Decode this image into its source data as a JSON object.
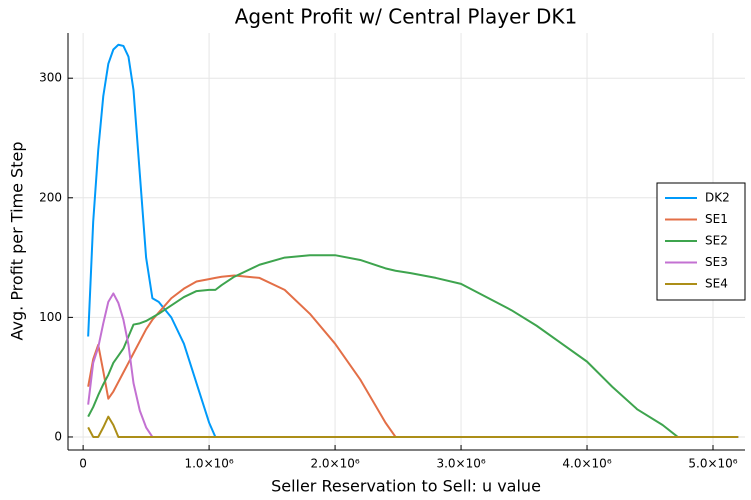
{
  "chart_data": {
    "type": "line",
    "title": "Agent Profit w/ Central Player DK1",
    "xlabel": "Seller Reservation to Sell: u value",
    "ylabel": "Avg. Profit per Time Step",
    "x": [
      40000,
      80000,
      120000,
      160000,
      200000,
      240000,
      280000,
      320000,
      360000,
      400000,
      450000,
      500000,
      550000,
      600000,
      700000,
      800000,
      900000,
      1000000,
      1050000,
      1100000,
      1200000,
      1400000,
      1600000,
      1800000,
      2000000,
      2200000,
      2400000,
      2480000,
      2600000,
      2800000,
      3000000,
      3200000,
      3400000,
      3600000,
      3800000,
      4000000,
      4200000,
      4400000,
      4600000,
      4720000,
      5000000,
      5200000
    ],
    "series": [
      {
        "name": "DK2",
        "color": "#009afa",
        "values": [
          84,
          180,
          240,
          285,
          312,
          324,
          328,
          327,
          318,
          290,
          220,
          150,
          116,
          113,
          100,
          78,
          45,
          12,
          0,
          0,
          0,
          0,
          0,
          0,
          0,
          0,
          0,
          0,
          0,
          0,
          0,
          0,
          0,
          0,
          0,
          0,
          0,
          0,
          0,
          0,
          0,
          0
        ]
      },
      {
        "name": "SE1",
        "color": "#e36f47",
        "values": [
          42,
          65,
          77,
          55,
          32,
          38,
          46,
          54,
          62,
          70,
          80,
          90,
          98,
          104,
          116,
          124,
          130,
          132,
          133,
          134,
          135,
          133,
          123,
          103,
          78,
          48,
          12,
          0,
          0,
          0,
          0,
          0,
          0,
          0,
          0,
          0,
          0,
          0,
          0,
          0,
          0,
          0
        ]
      },
      {
        "name": "SE2",
        "color": "#3ea44e",
        "values": [
          17,
          25,
          35,
          44,
          52,
          62,
          68,
          74,
          84,
          94,
          95,
          97,
          100,
          103,
          110,
          117,
          122,
          123,
          123,
          127,
          134,
          144,
          150,
          152,
          152,
          148,
          141,
          139,
          137,
          133,
          128,
          117,
          106,
          93,
          78,
          63,
          42,
          23,
          10,
          0,
          0,
          0
        ]
      },
      {
        "name": "SE3",
        "color": "#c371d2",
        "values": [
          27,
          62,
          75,
          95,
          113,
          120,
          112,
          98,
          77,
          45,
          22,
          8,
          0,
          0,
          0,
          0,
          0,
          0,
          0,
          0,
          0,
          0,
          0,
          0,
          0,
          0,
          0,
          0,
          0,
          0,
          0,
          0,
          0,
          0,
          0,
          0,
          0,
          0,
          0,
          0,
          0,
          0
        ]
      },
      {
        "name": "SE4",
        "color": "#ac8e18",
        "values": [
          8,
          0,
          0,
          8,
          17,
          10,
          0,
          0,
          0,
          0,
          0,
          0,
          0,
          0,
          0,
          0,
          0,
          0,
          0,
          0,
          0,
          0,
          0,
          0,
          0,
          0,
          0,
          0,
          0,
          0,
          0,
          0,
          0,
          0,
          0,
          0,
          0,
          0,
          0,
          0,
          0,
          0
        ]
      }
    ],
    "xlim": [
      -120000,
      5254000
    ],
    "xticks": [
      0,
      {
        "value": 1000000,
        "label": "1.0×10⁶"
      },
      {
        "value": 2000000,
        "label": "2.0×10⁶"
      },
      {
        "value": 3000000,
        "label": "3.0×10⁶"
      },
      {
        "value": 4000000,
        "label": "4.0×10⁶"
      },
      {
        "value": 5000000,
        "label": "5.0×10⁶"
      }
    ],
    "ylim": [
      -10.9,
      337.8
    ],
    "yticks": [
      0,
      100,
      200,
      300
    ],
    "grid": true,
    "legend": "right"
  }
}
